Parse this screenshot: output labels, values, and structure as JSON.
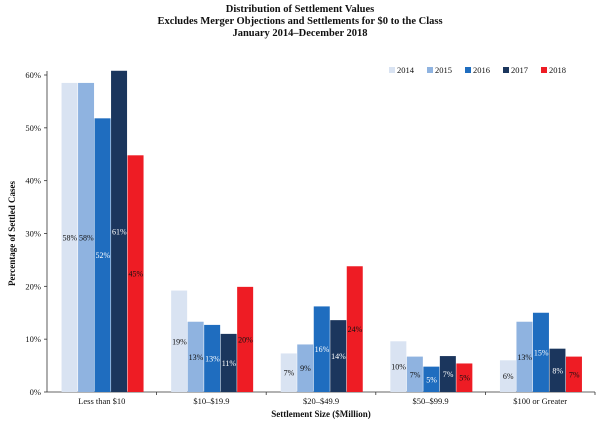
{
  "chart_data": {
    "type": "bar",
    "title": [
      "Distribution of Settlement Values",
      "Excludes Merger Objections and Settlements for $0 to the Class",
      "January 2014–December 2018"
    ],
    "xlabel": "Settlement Size ($Million)",
    "ylabel": "Percentage of Settled Cases",
    "ylim": [
      0,
      60
    ],
    "yticks": [
      0,
      10,
      20,
      30,
      40,
      50,
      60
    ],
    "ytick_labels": [
      "0%",
      "10%",
      "20%",
      "30%",
      "40%",
      "50%",
      "60%"
    ],
    "categories": [
      "Less than $10",
      "$10–$19.9",
      "$20–$49.9",
      "$50–$99.9",
      "$100 or Greater"
    ],
    "legend_position": "top-right",
    "series": [
      {
        "name": "2014",
        "color": "#d9e3f2",
        "values": [
          58.5,
          19.2,
          7.3,
          9.6,
          6.0
        ],
        "labels": [
          "58%",
          "19%",
          "7%",
          "10%",
          "6%"
        ]
      },
      {
        "name": "2015",
        "color": "#8fb3e0",
        "values": [
          58.5,
          13.3,
          9.0,
          6.7,
          13.3
        ],
        "labels": [
          "58%",
          "13%",
          "9%",
          "7%",
          "13%"
        ]
      },
      {
        "name": "2016",
        "color": "#1f6dbf",
        "values": [
          51.8,
          12.7,
          16.2,
          4.8,
          15.0
        ],
        "labels": [
          "52%",
          "13%",
          "16%",
          "5%",
          "15%"
        ]
      },
      {
        "name": "2017",
        "color": "#1b365d",
        "values": [
          60.8,
          11.0,
          13.6,
          6.8,
          8.2
        ],
        "labels": [
          "61%",
          "11%",
          "14%",
          "7%",
          "8%"
        ]
      },
      {
        "name": "2018",
        "color": "#ee1c24",
        "values": [
          44.8,
          19.9,
          23.8,
          5.4,
          6.7
        ],
        "labels": [
          "45%",
          "20%",
          "24%",
          "5%",
          "7%"
        ]
      }
    ]
  }
}
